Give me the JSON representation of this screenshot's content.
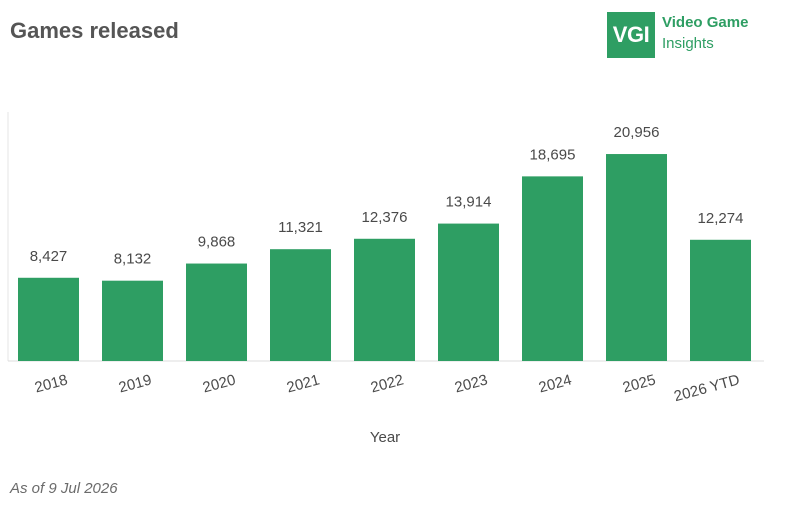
{
  "header": {
    "title": "Games released",
    "logo_mark": "VGI",
    "logo_line1": "Video Game",
    "logo_line2": "Insights"
  },
  "footnote": "As of 9 Jul 2026",
  "chart_data": {
    "type": "bar",
    "title": "Games released",
    "xlabel": "Year",
    "ylabel": "",
    "categories": [
      "2018",
      "2019",
      "2020",
      "2021",
      "2022",
      "2023",
      "2024",
      "2025",
      "2026 YTD"
    ],
    "values": [
      8427,
      8132,
      9868,
      11321,
      12376,
      13914,
      18695,
      20956,
      12274
    ],
    "data_labels": [
      "8,427",
      "8,132",
      "9,868",
      "11,321",
      "12,376",
      "13,914",
      "18,695",
      "20,956",
      "12,274"
    ],
    "ylim": [
      0,
      24000
    ],
    "grid": false,
    "legend": "none",
    "bar_color": "#2e9e63"
  }
}
